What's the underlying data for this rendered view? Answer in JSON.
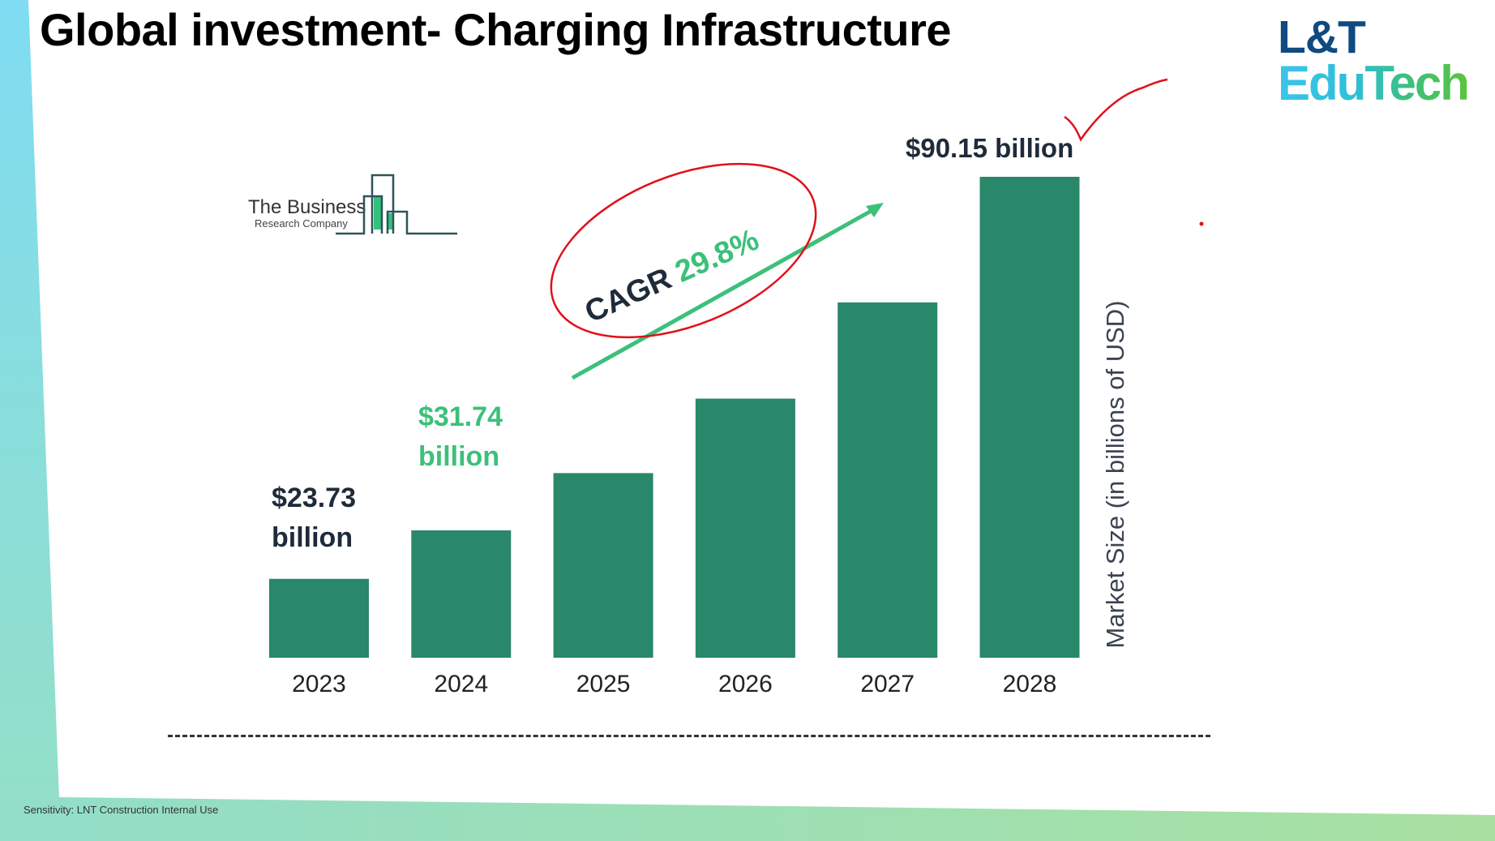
{
  "slide": {
    "title": "Global investment- Charging Infrastructure",
    "brand_top": "L&T",
    "brand_bottom": "EduTech",
    "source_logo_line1": "The Business",
    "source_logo_line2": "Research Company",
    "footer": "Sensitivity: LNT Construction Internal Use",
    "cagr_label": "CAGR",
    "cagr_value": "29.8%"
  },
  "colors": {
    "bar": "#29876a",
    "accent_green": "#3cc07a",
    "annotation_red": "#e0101a",
    "dark_text": "#1e2b3a"
  },
  "chart_data": {
    "type": "bar",
    "title": "Global investment- Charging Infrastructure",
    "xlabel": "",
    "ylabel": "Market Size (in billions of USD)",
    "categories": [
      "2023",
      "2024",
      "2025",
      "2026",
      "2027",
      "2028"
    ],
    "values": [
      23.73,
      31.74,
      41.2,
      53.5,
      69.4,
      90.15
    ],
    "ylim": [
      10.7,
      90.15
    ],
    "grid": false,
    "data_labels": {
      "2023": [
        "$23.73",
        "billion"
      ],
      "2024": [
        "$31.74",
        "billion"
      ],
      "2028": "$90.15 billion"
    },
    "annotation": "CAGR 29.8%"
  }
}
